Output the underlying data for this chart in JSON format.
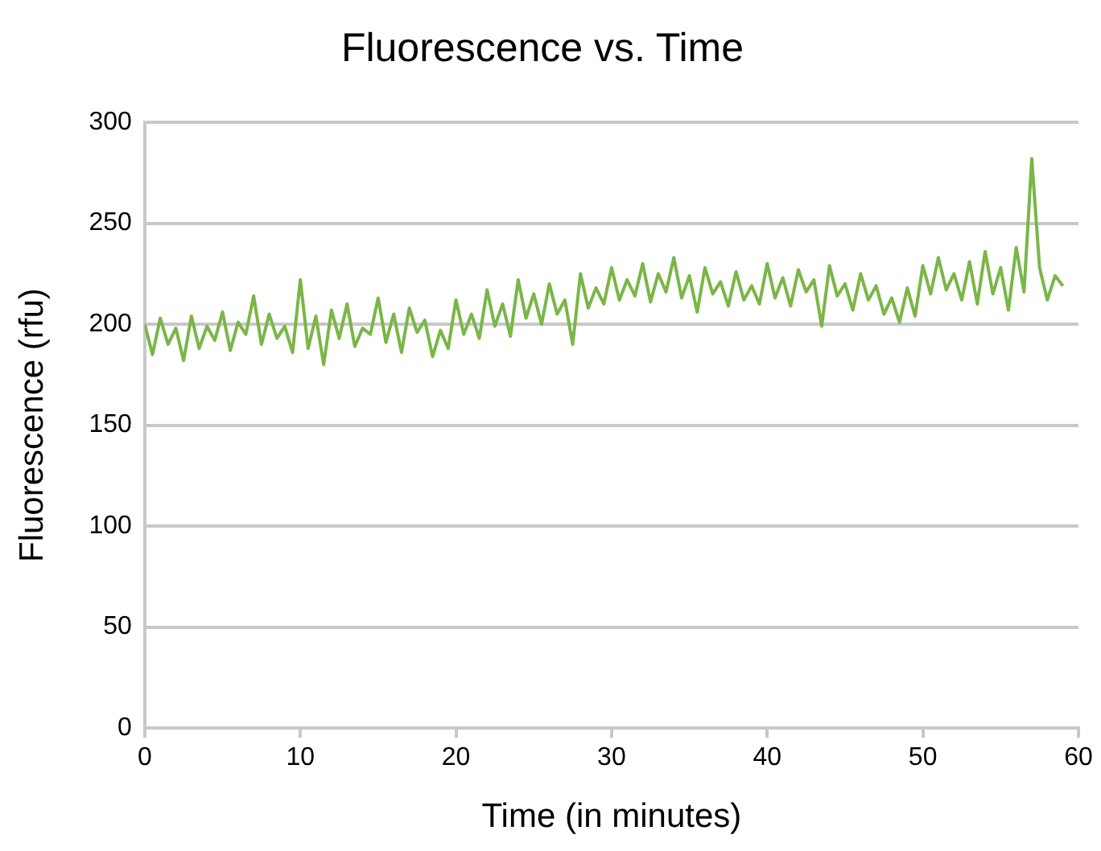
{
  "chart_data": {
    "type": "line",
    "title": "Fluorescence vs. Time",
    "xlabel": "Time (in minutes)",
    "ylabel": "Fluorescence (rfu)",
    "x": [
      0,
      0.5,
      1,
      1.5,
      2,
      2.5,
      3,
      3.5,
      4,
      4.5,
      5,
      5.5,
      6,
      6.5,
      7,
      7.5,
      8,
      8.5,
      9,
      9.5,
      10,
      10.5,
      11,
      11.5,
      12,
      12.5,
      13,
      13.5,
      14,
      14.5,
      15,
      15.5,
      16,
      16.5,
      17,
      17.5,
      18,
      18.5,
      19,
      19.5,
      20,
      20.5,
      21,
      21.5,
      22,
      22.5,
      23,
      23.5,
      24,
      24.5,
      25,
      25.5,
      26,
      26.5,
      27,
      27.5,
      28,
      28.5,
      29,
      29.5,
      30,
      30.5,
      31,
      31.5,
      32,
      32.5,
      33,
      33.5,
      34,
      34.5,
      35,
      35.5,
      36,
      36.5,
      37,
      37.5,
      38,
      38.5,
      39,
      39.5,
      40,
      40.5,
      41,
      41.5,
      42,
      42.5,
      43,
      43.5,
      44,
      44.5,
      45,
      45.5,
      46,
      46.5,
      47,
      47.5,
      48,
      48.5,
      49,
      49.5,
      50,
      50.5,
      51,
      51.5,
      52,
      52.5,
      53,
      53.5,
      54,
      54.5,
      55,
      55.5,
      56,
      56.5,
      57,
      57.5,
      58,
      58.5,
      59
    ],
    "series": [
      {
        "color": "#7ab648",
        "values": [
          200,
          185,
          203,
          190,
          198,
          182,
          204,
          188,
          199,
          192,
          206,
          187,
          201,
          195,
          214,
          190,
          205,
          193,
          199,
          186,
          222,
          188,
          204,
          180,
          207,
          193,
          210,
          189,
          198,
          195,
          213,
          191,
          205,
          186,
          208,
          196,
          202,
          184,
          197,
          188,
          212,
          195,
          205,
          193,
          217,
          199,
          210,
          194,
          222,
          203,
          215,
          200,
          220,
          205,
          212,
          190,
          225,
          208,
          218,
          210,
          228,
          212,
          222,
          214,
          230,
          211,
          225,
          216,
          233,
          213,
          224,
          206,
          228,
          215,
          221,
          209,
          226,
          212,
          219,
          210,
          230,
          213,
          223,
          209,
          227,
          216,
          222,
          199,
          229,
          214,
          220,
          207,
          225,
          212,
          219,
          205,
          213,
          201,
          218,
          204,
          229,
          215,
          233,
          217,
          225,
          212,
          231,
          210,
          236,
          215,
          228,
          207,
          238,
          216,
          282,
          228,
          212,
          224,
          219
        ]
      }
    ],
    "xlim": [
      0,
      60
    ],
    "xticks": [
      0,
      10,
      20,
      30,
      40,
      50,
      60
    ],
    "ylim": [
      0,
      300
    ],
    "yticks": [
      0,
      50,
      100,
      150,
      200,
      250,
      300
    ],
    "grid": "y",
    "legend": false,
    "marker": "none",
    "line_style": "solid"
  }
}
